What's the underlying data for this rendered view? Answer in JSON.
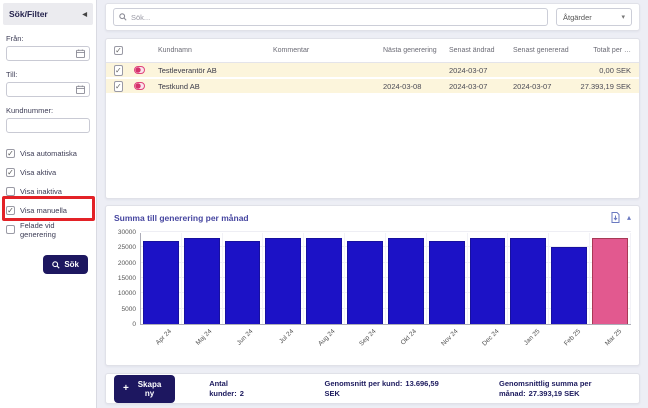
{
  "sidebar": {
    "title": "Sök/Filter",
    "fields": [
      {
        "label": "Från:",
        "value": "",
        "icon": "calendar"
      },
      {
        "label": "Till:",
        "value": "",
        "icon": "calendar"
      },
      {
        "label": "Kundnummer:",
        "value": ""
      }
    ],
    "checkboxes": [
      {
        "label": "Visa automatiska",
        "checked": true
      },
      {
        "label": "Visa aktiva",
        "checked": true
      },
      {
        "label": "Visa inaktiva",
        "checked": false
      },
      {
        "label": "Visa manuella",
        "checked": true
      },
      {
        "label": "Felade vid generering",
        "checked": false,
        "highlighted": true
      }
    ],
    "search_button": "Sök"
  },
  "topbar": {
    "search_placeholder": "Sök...",
    "actions_label": "Åtgärder"
  },
  "table": {
    "headers": [
      "Kundnamn",
      "Kommentar",
      "Nästa generering",
      "Senast ändrad",
      "Senast genererad",
      "Totalt per …"
    ],
    "rows": [
      {
        "selected": true,
        "kundnamn": "Testleverantör AB",
        "kommentar": "",
        "nasta_generering": "",
        "senast_andrad": "2024-03-07",
        "senast_genererad": "",
        "totalt": "0,00 SEK"
      },
      {
        "selected": true,
        "kundnamn": "Testkund AB",
        "kommentar": "",
        "nasta_generering": "2024-03-08",
        "senast_andrad": "2024-03-07",
        "senast_genererad": "2024-03-07",
        "totalt": "27.393,19 SEK"
      }
    ]
  },
  "chart_data": {
    "type": "bar",
    "title": "Summa till generering per månad",
    "categories": [
      "Apr 24",
      "Maj 24",
      "Jun 24",
      "Jul 24",
      "Aug 24",
      "Sep 24",
      "Okt 24",
      "Nov 24",
      "Dec 24",
      "Jan 25",
      "Feb 25",
      "Mar 25"
    ],
    "values": [
      27000,
      27900,
      27000,
      27900,
      27900,
      27000,
      27900,
      27000,
      27900,
      27900,
      25200,
      27900
    ],
    "xlabel": "",
    "ylabel": "",
    "ylim": [
      0,
      30000
    ],
    "yticks": [
      0,
      5000,
      10000,
      15000,
      20000,
      25000,
      30000
    ],
    "grid": true,
    "legend": false,
    "bar_color": "#1c12c6",
    "bar_border": "#17109f",
    "highlight_index": 11,
    "highlight_color": "#e2598f",
    "highlight_border": "#a83a55"
  },
  "footer": {
    "create_button": "Skapa ny",
    "stats": [
      {
        "label": "Antal kunder:",
        "value": "2"
      },
      {
        "label": "Genomsnitt per kund:",
        "value": "13.696,59 SEK"
      },
      {
        "label": "Genomsnittlig summa per månad:",
        "value": "27.393,19 SEK"
      }
    ]
  },
  "annotation": {
    "box_color": "#e32227"
  }
}
